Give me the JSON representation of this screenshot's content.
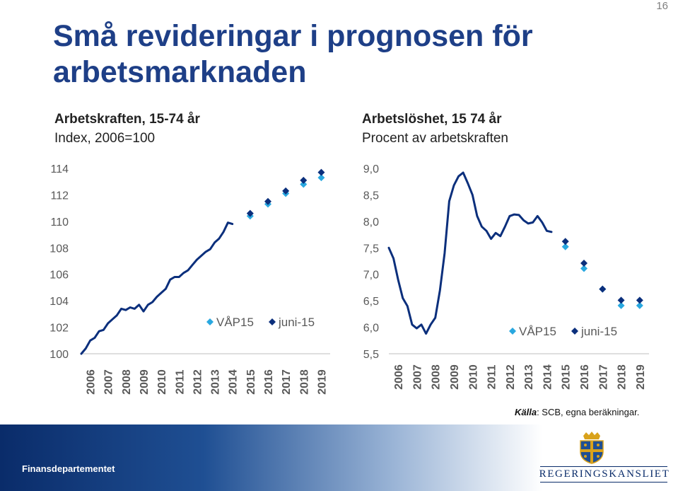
{
  "page_number": "16",
  "title": "Små revideringar i prognosen för arbetsmarknaden",
  "source": {
    "label": "Källa",
    "text": ": SCB, egna beräkningar."
  },
  "footer": {
    "department": "Finansdepartementet",
    "logo_text": "REGERINGSKANSLIET"
  },
  "colors": {
    "line": "#0b2f7c",
    "vap": "#29a8e0",
    "juni": "#0b2f7c",
    "title": "#1e3f87"
  },
  "chart_data": [
    {
      "type": "line",
      "title": "Arbetskraften, 15-74 år",
      "subtitle": "Index, 2006=100",
      "xlabel": "",
      "ylabel": "",
      "x_categories": [
        "2006",
        "2007",
        "2008",
        "2009",
        "2010",
        "2011",
        "2012",
        "2013",
        "2014",
        "2015",
        "2016",
        "2017",
        "2018",
        "2019"
      ],
      "ylim": [
        100,
        114
      ],
      "y_ticks": [
        "100",
        "102",
        "104",
        "106",
        "108",
        "110",
        "112",
        "114"
      ],
      "legend_position": "bottom-right",
      "series": [
        {
          "name": "",
          "kind": "line",
          "x_start": 2006.0,
          "x_step": 0.25,
          "values": [
            100.0,
            100.4,
            101.0,
            101.2,
            101.7,
            101.8,
            102.3,
            102.6,
            102.9,
            103.4,
            103.3,
            103.5,
            103.4,
            103.7,
            103.2,
            103.7,
            103.9,
            104.3,
            104.6,
            104.9,
            105.6,
            105.8,
            105.8,
            106.1,
            106.3,
            106.7,
            107.1,
            107.4,
            107.7,
            107.9,
            108.4,
            108.7,
            109.2,
            109.9,
            109.8
          ]
        },
        {
          "name": "VÅP15",
          "kind": "markers",
          "x": [
            2015.5,
            2016.5,
            2017.5,
            2018.5,
            2019.5
          ],
          "values": [
            110.4,
            111.3,
            112.1,
            112.8,
            113.3
          ]
        },
        {
          "name": "juni-15",
          "kind": "markers",
          "x": [
            2015.5,
            2016.5,
            2017.5,
            2018.5,
            2019.5
          ],
          "values": [
            110.6,
            111.5,
            112.3,
            113.1,
            113.7
          ]
        }
      ]
    },
    {
      "type": "line",
      "title": "Arbetslöshet, 15 74 år",
      "subtitle": "Procent av arbetskraften",
      "xlabel": "",
      "ylabel": "",
      "x_categories": [
        "2006",
        "2007",
        "2008",
        "2009",
        "2010",
        "2011",
        "2012",
        "2013",
        "2014",
        "2015",
        "2016",
        "2017",
        "2018",
        "2019"
      ],
      "ylim": [
        5.5,
        9.0
      ],
      "y_ticks": [
        "5,5",
        "6,0",
        "6,5",
        "7,0",
        "7,5",
        "8,0",
        "8,5",
        "9,0"
      ],
      "legend_position": "bottom-right",
      "series": [
        {
          "name": "",
          "kind": "line",
          "x_start": 2006.0,
          "x_step": 0.25,
          "values": [
            7.5,
            7.3,
            6.9,
            6.55,
            6.4,
            6.05,
            5.98,
            6.05,
            5.88,
            6.05,
            6.18,
            6.7,
            7.4,
            8.38,
            8.68,
            8.85,
            8.92,
            8.72,
            8.5,
            8.1,
            7.9,
            7.82,
            7.67,
            7.78,
            7.72,
            7.9,
            8.1,
            8.13,
            8.12,
            8.02,
            7.96,
            7.98,
            8.1,
            7.98,
            7.82,
            7.8
          ]
        },
        {
          "name": "VÅP15",
          "kind": "markers",
          "x": [
            2015.5,
            2016.5,
            2017.5,
            2018.5,
            2019.5
          ],
          "values": [
            7.52,
            7.11,
            6.72,
            6.41,
            6.41
          ]
        },
        {
          "name": "juni-15",
          "kind": "markers",
          "x": [
            2015.5,
            2016.5,
            2017.5,
            2018.5,
            2019.5
          ],
          "values": [
            7.62,
            7.21,
            6.72,
            6.51,
            6.51
          ]
        }
      ]
    }
  ]
}
